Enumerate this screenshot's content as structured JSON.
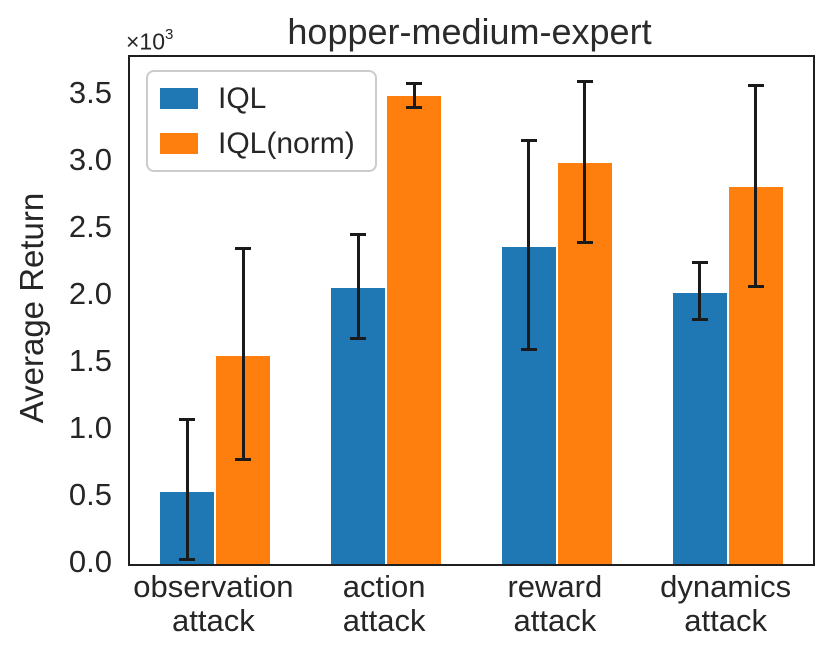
{
  "chart_data": {
    "type": "bar",
    "title": "hopper-medium-expert",
    "xlabel": "",
    "ylabel": "Average Return",
    "axis_offset": {
      "base": "×10",
      "exponent": "3"
    },
    "value_units": "10^3 (axis multiplier ×10³)",
    "categories": [
      "observation\nattack",
      "action\nattack",
      "reward\nattack",
      "dynamics\nattack"
    ],
    "yticks": [
      0.0,
      0.5,
      1.0,
      1.5,
      2.0,
      2.5,
      3.0,
      3.5
    ],
    "ylim": [
      0,
      3.78
    ],
    "grid": false,
    "legend_position": "upper left",
    "error_bar_color": "#1a1a1a",
    "series": [
      {
        "name": "IQL",
        "color": "#1f77b4",
        "values": [
          0.54,
          2.06,
          2.36,
          2.02
        ],
        "err_low": [
          0.03,
          1.68,
          1.6,
          1.82
        ],
        "err_high": [
          1.08,
          2.46,
          3.16,
          2.25
        ]
      },
      {
        "name": "IQL(norm)",
        "color": "#ff7f0e",
        "values": [
          1.55,
          3.49,
          2.99,
          2.81
        ],
        "err_low": [
          0.78,
          3.4,
          2.4,
          2.07
        ],
        "err_high": [
          2.35,
          3.58,
          3.6,
          3.57
        ]
      }
    ]
  }
}
